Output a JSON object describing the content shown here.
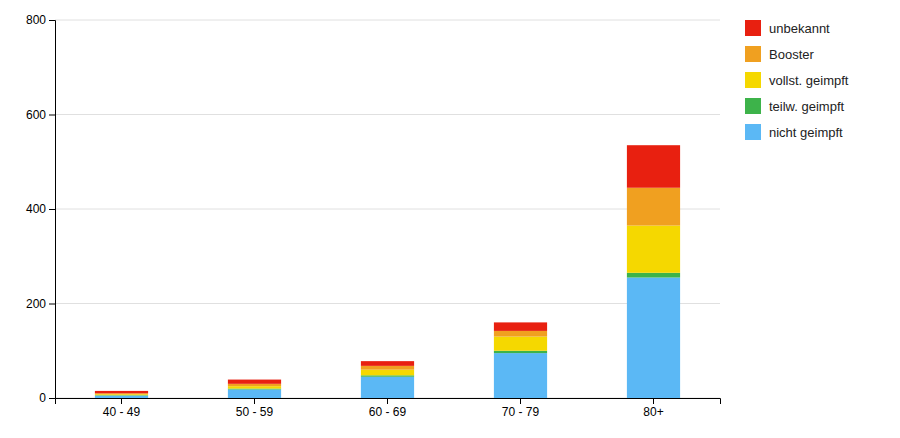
{
  "chart_data": {
    "type": "bar",
    "stacked": true,
    "grid": true,
    "legend": "right",
    "categories": [
      "40 - 49",
      "50 - 59",
      "60 - 69",
      "70 - 79",
      "80+"
    ],
    "series": [
      {
        "name": "nicht geimpft",
        "color": "#5bb8f5",
        "values": [
          5,
          18,
          45,
          95,
          255
        ]
      },
      {
        "name": "teilw. geimpft",
        "color": "#3db34a",
        "values": [
          1,
          2,
          3,
          5,
          10
        ]
      },
      {
        "name": "vollst. geimpft",
        "color": "#f5d800",
        "values": [
          2,
          5,
          12,
          30,
          100
        ]
      },
      {
        "name": "Booster",
        "color": "#f0a020",
        "values": [
          2,
          5,
          8,
          12,
          80
        ]
      },
      {
        "name": "unbekannt",
        "color": "#e82010",
        "values": [
          5,
          9,
          10,
          18,
          90
        ]
      }
    ],
    "ylim": [
      0,
      800
    ],
    "yticks": [
      0,
      200,
      400,
      600,
      800
    ]
  }
}
